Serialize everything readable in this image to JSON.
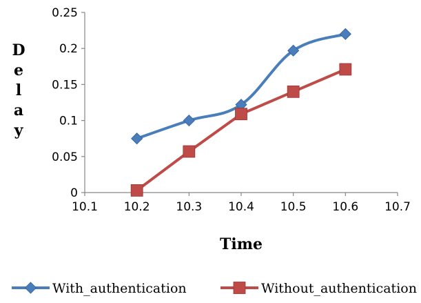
{
  "chart_data": {
    "type": "line",
    "title": "",
    "xlabel": "Time",
    "ylabel": "Delay",
    "xlim": [
      10.1,
      10.7
    ],
    "ylim": [
      0,
      0.25
    ],
    "x_ticks": [
      "10.1",
      "10.2",
      "10.3",
      "10.4",
      "10.5",
      "10.6",
      "10.7"
    ],
    "y_ticks": [
      "0",
      "0.05",
      "0.1",
      "0.15",
      "0.2",
      "0.25"
    ],
    "grid": false,
    "legend_position": "bottom",
    "series": [
      {
        "name": "With_authentication",
        "color": "#4a7ebb",
        "marker": "diamond",
        "smooth": true,
        "x": [
          10.2,
          10.3,
          10.4,
          10.5,
          10.6
        ],
        "y": [
          0.075,
          0.1,
          0.122,
          0.197,
          0.22
        ]
      },
      {
        "name": "Without_authentication",
        "color": "#be4b48",
        "marker": "square",
        "smooth": false,
        "x": [
          10.2,
          10.3,
          10.4,
          10.5,
          10.6
        ],
        "y": [
          0.003,
          0.057,
          0.109,
          0.14,
          0.171
        ]
      }
    ]
  }
}
